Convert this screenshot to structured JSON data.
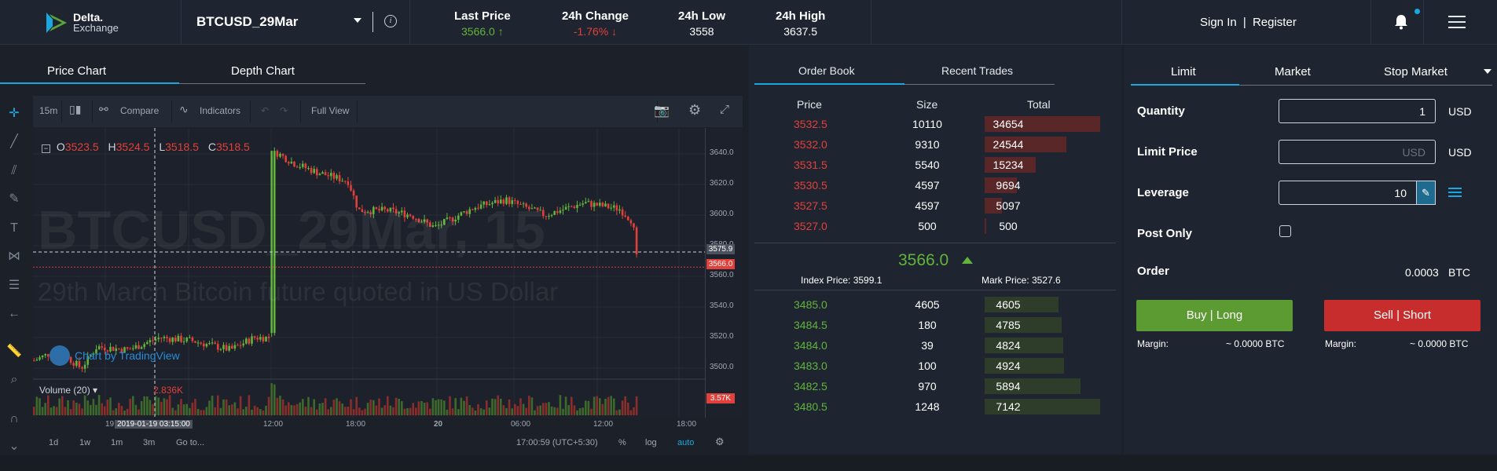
{
  "header": {
    "logo_line1": "Delta.",
    "logo_line2": "Exchange",
    "symbol": "BTCUSD_29Mar",
    "stats": [
      {
        "label": "Last Price",
        "value": "3566.0 ↑",
        "color": "#61b33b"
      },
      {
        "label": "24h Change",
        "value": "-1.76% ↓",
        "color": "#e2403a"
      },
      {
        "label": "24h Low",
        "value": "3558",
        "color": "#ffffff"
      },
      {
        "label": "24h High",
        "value": "3637.5",
        "color": "#ffffff"
      }
    ],
    "signin": "Sign In",
    "separator": "|",
    "register": "Register"
  },
  "chart": {
    "tabs": [
      "Price Chart",
      "Depth Chart"
    ],
    "toolbar": {
      "interval": "15m",
      "compare": "Compare",
      "indicators": "Indicators",
      "full_view": "Full View"
    },
    "ohlc": {
      "o_label": "O",
      "o": "3523.5",
      "h_label": "H",
      "h": "3524.5",
      "l_label": "L",
      "l": "3518.5",
      "c_label": "C",
      "c": "3518.5"
    },
    "watermark_title": "BTCUSD_29Mar, 15",
    "watermark_sub": "29th March Bitcoin future quoted in US Dollar",
    "tv_badge": "Chart by TradingView",
    "volume_label": "Volume (20) ▾",
    "volume_value": "2.836K",
    "price_axis": [
      "3640.0",
      "3620.0",
      "3600.0",
      "3580.0",
      "3560.0",
      "3540.0",
      "3520.0",
      "3500.0"
    ],
    "price_tags": {
      "crosshair": "3575.9",
      "last": "3566.0",
      "volume": "3.57K"
    },
    "time_axis": [
      "19",
      "2019-01-19 03:15:00",
      "12:00",
      "18:00",
      "20",
      "06:00",
      "12:00",
      "18:00"
    ],
    "bottom": {
      "ranges": [
        "1d",
        "1w",
        "1m",
        "3m",
        "Go to..."
      ],
      "clock": "17:00:59 (UTC+5:30)",
      "pct": "%",
      "log": "log",
      "auto": "auto"
    }
  },
  "orderbook": {
    "tabs": [
      "Order Book",
      "Recent Trades"
    ],
    "headers": [
      "Price",
      "Size",
      "Total"
    ],
    "asks": [
      {
        "price": "3532.5",
        "size": "10110",
        "total": "34654",
        "depth": 1.0
      },
      {
        "price": "3532.0",
        "size": "9310",
        "total": "24544",
        "depth": 0.71
      },
      {
        "price": "3531.5",
        "size": "5540",
        "total": "15234",
        "depth": 0.44
      },
      {
        "price": "3530.5",
        "size": "4597",
        "total": "9694",
        "depth": 0.28
      },
      {
        "price": "3527.5",
        "size": "4597",
        "total": "5097",
        "depth": 0.15
      },
      {
        "price": "3527.0",
        "size": "500",
        "total": "500",
        "depth": 0.0
      }
    ],
    "mid_price": "3566.0",
    "index_price": "Index Price: 3599.1",
    "mark_price": "Mark Price: 3527.6",
    "bids": [
      {
        "price": "3485.0",
        "size": "4605",
        "total": "4605",
        "depth": 0.64
      },
      {
        "price": "3484.5",
        "size": "180",
        "total": "4785",
        "depth": 0.67
      },
      {
        "price": "3484.0",
        "size": "39",
        "total": "4824",
        "depth": 0.68
      },
      {
        "price": "3483.0",
        "size": "100",
        "total": "4924",
        "depth": 0.69
      },
      {
        "price": "3482.5",
        "size": "970",
        "total": "5894",
        "depth": 0.83
      },
      {
        "price": "3480.5",
        "size": "1248",
        "total": "7142",
        "depth": 1.0
      }
    ]
  },
  "order_form": {
    "tabs": [
      "Limit",
      "Market",
      "Stop Market"
    ],
    "quantity_label": "Quantity",
    "quantity_value": "1",
    "quantity_unit": "USD",
    "limit_label": "Limit Price",
    "limit_placeholder": "USD",
    "limit_unit": "USD",
    "leverage_label": "Leverage",
    "leverage_value": "10",
    "post_only_label": "Post Only",
    "order_label": "Order",
    "order_value": "0.0003",
    "order_unit": "BTC",
    "buy_button": "Buy | Long",
    "sell_button": "Sell | Short",
    "margin_label": "Margin:",
    "buy_margin": "~ 0.0000 BTC",
    "sell_margin": "~ 0.0000 BTC"
  },
  "colors": {
    "accent": "#1ba8e0",
    "green": "#61b33b",
    "red": "#e2403a",
    "buy": "#5b9b32",
    "sell": "#c82d2d"
  }
}
